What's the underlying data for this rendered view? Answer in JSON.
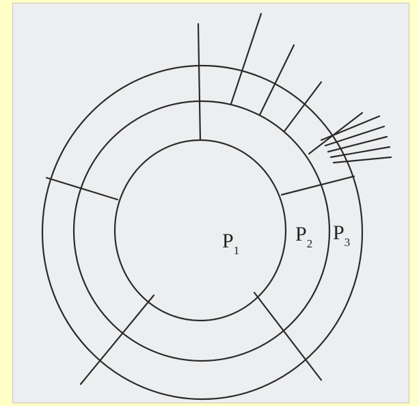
{
  "labels": [
    {
      "base": "P",
      "sub": "1"
    },
    {
      "base": "P",
      "sub": "2"
    },
    {
      "base": "P",
      "sub": "3"
    }
  ]
}
